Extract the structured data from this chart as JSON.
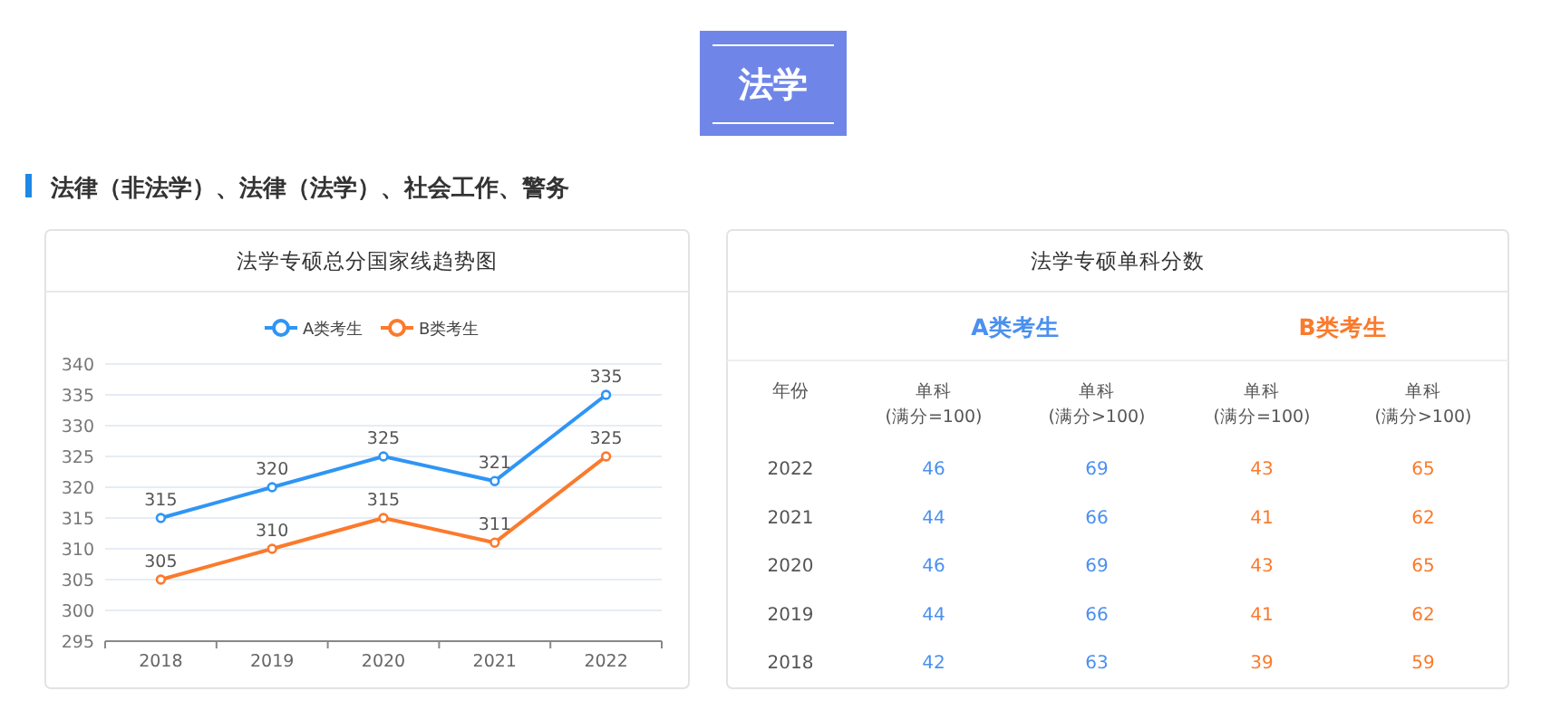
{
  "chart_data": [
    {
      "type": "line",
      "title": "法学专硕总分国家线趋势图",
      "annotations": [
        "法学",
        "法律（非法学）、法律（法学）、社会工作、警务"
      ],
      "categories": [
        "2018",
        "2019",
        "2020",
        "2021",
        "2022"
      ],
      "series": [
        {
          "name": "A类考生",
          "color": "#2f95f5",
          "values": [
            315,
            320,
            325,
            321,
            335
          ]
        },
        {
          "name": "B类考生",
          "color": "#fb7a2c",
          "values": [
            305,
            310,
            315,
            311,
            325
          ]
        }
      ],
      "ylim": [
        295,
        340
      ],
      "yticks": [
        295,
        300,
        305,
        310,
        315,
        320,
        325,
        330,
        335,
        340
      ],
      "grid": "y",
      "legend": "top",
      "marker": "circle",
      "data_labels": true
    },
    {
      "type": "heatmap",
      "title": "法学专硕单科分数",
      "ylabel": "年份",
      "annotations": [
        "A类考生",
        "B类考生"
      ],
      "categories": [
        "单科\n(满分=100)",
        "单科\n(满分>100)",
        "单科\n(满分=100)",
        "单科\n(满分>100)"
      ],
      "colors": [
        "#4a90f0",
        "#4a90f0",
        "#fb7a2c",
        "#fb7a2c"
      ],
      "y_categories": [
        "2022",
        "2021",
        "2020",
        "2019",
        "2018"
      ],
      "cells": [
        [
          46,
          69,
          43,
          65
        ],
        [
          44,
          66,
          41,
          62
        ],
        [
          46,
          69,
          43,
          65
        ],
        [
          44,
          66,
          41,
          62
        ],
        [
          42,
          63,
          39,
          59
        ]
      ],
      "data_labels": true
    }
  ]
}
